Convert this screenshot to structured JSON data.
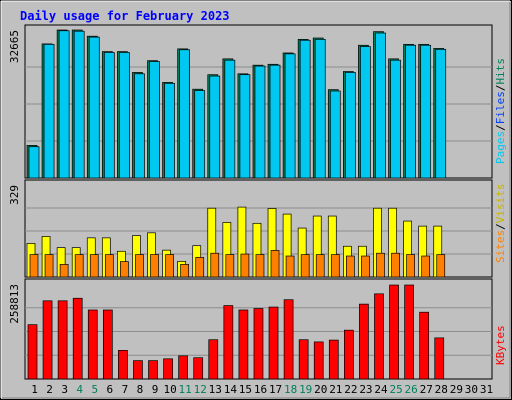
{
  "chart_data": {
    "type": "bar",
    "title": "Daily usage for February 2023",
    "categories": [
      "1",
      "2",
      "3",
      "4",
      "5",
      "6",
      "7",
      "8",
      "9",
      "10",
      "11",
      "12",
      "13",
      "14",
      "15",
      "16",
      "17",
      "18",
      "19",
      "20",
      "21",
      "22",
      "23",
      "24",
      "25",
      "26",
      "27",
      "28",
      "29",
      "30",
      "31"
    ],
    "weekend_days": [
      "4",
      "5",
      "11",
      "12",
      "18",
      "19",
      "25",
      "26"
    ],
    "panels": [
      {
        "name": "hits-files-pages",
        "max_label": "32665",
        "ylim": [
          0,
          32665
        ],
        "legend": [
          "Pages",
          "/",
          "Files",
          "/",
          "Hits"
        ],
        "series": [
          {
            "name": "Hits",
            "color": "#00805c",
            "values": [
              7200,
              29600,
              32665,
              32665,
              31300,
              27900,
              27900,
              23300,
              25900,
              21100,
              28500,
              19600,
              22800,
              26300,
              23000,
              24900,
              25100,
              27600,
              30600,
              30900,
              19500,
              23500,
              29300,
              32300,
              26300,
              29500,
              29500,
              28600,
              0,
              0,
              0
            ]
          },
          {
            "name": "Files",
            "color": "#00c8f0",
            "values": [
              6900,
              29500,
              32500,
              32400,
              31100,
              27700,
              27700,
              23000,
              25700,
              20900,
              28300,
              19300,
              22500,
              26000,
              22800,
              24700,
              24900,
              27400,
              30400,
              30600,
              19200,
              23300,
              29000,
              32000,
              26000,
              29300,
              29300,
              28400,
              0,
              0,
              0
            ]
          }
        ]
      },
      {
        "name": "visits-sites",
        "max_label": "329",
        "ylim": [
          0,
          329
        ],
        "legend": [
          "Sites",
          "/",
          "Visits"
        ],
        "series": [
          {
            "name": "Visits",
            "color": "#ffff00",
            "values": [
              120,
              145,
              105,
              105,
              140,
              140,
              92,
              148,
              158,
              96,
              56,
              112,
              246,
              195,
              250,
              192,
              245,
              225,
              175,
              218,
              218,
              110,
              110,
              246,
              246,
              200,
              182,
              182,
              0,
              0,
              0
            ]
          },
          {
            "name": "Sites",
            "color": "#ff8000",
            "values": [
              80,
              80,
              45,
              80,
              80,
              80,
              55,
              80,
              80,
              80,
              45,
              70,
              85,
              80,
              82,
              80,
              95,
              75,
              80,
              80,
              80,
              75,
              75,
              85,
              85,
              80,
              75,
              80,
              0,
              0,
              0
            ]
          }
        ]
      },
      {
        "name": "kbytes",
        "max_label": "258813",
        "ylim": [
          0,
          258813
        ],
        "legend": [
          "KBytes"
        ],
        "series": [
          {
            "name": "KBytes",
            "color": "#ff0000",
            "values": [
              148000,
              213000,
              213000,
              220000,
              188000,
              188000,
              78000,
              50000,
              50000,
              55000,
              63000,
              58000,
              107000,
              200000,
              188000,
              192000,
              196000,
              216000,
              107000,
              101000,
              106000,
              133000,
              204000,
              232000,
              256000,
              256000,
              182000,
              112000,
              0,
              0,
              0
            ]
          }
        ]
      }
    ]
  }
}
